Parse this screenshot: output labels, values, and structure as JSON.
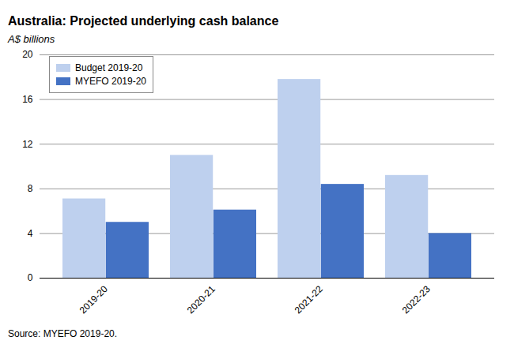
{
  "chart_data": {
    "type": "bar",
    "title": "Australia: Projected underlying cash balance",
    "subtitle": "A$ billions",
    "source": "Source: MYEFO 2019-20.",
    "categories": [
      "2019-20",
      "2020-21",
      "2021-22",
      "2022-23"
    ],
    "series": [
      {
        "name": "Budget 2019-20",
        "color": "#bed0ee",
        "values": [
          7.1,
          11.0,
          17.8,
          9.2
        ]
      },
      {
        "name": "MYEFO 2019-20",
        "color": "#4472c4",
        "values": [
          5.0,
          6.1,
          8.4,
          4.0
        ]
      }
    ],
    "ylim": [
      0,
      20
    ],
    "yticks": [
      0,
      4,
      8,
      12,
      16,
      20
    ],
    "grid": true,
    "legend": "top-left"
  }
}
